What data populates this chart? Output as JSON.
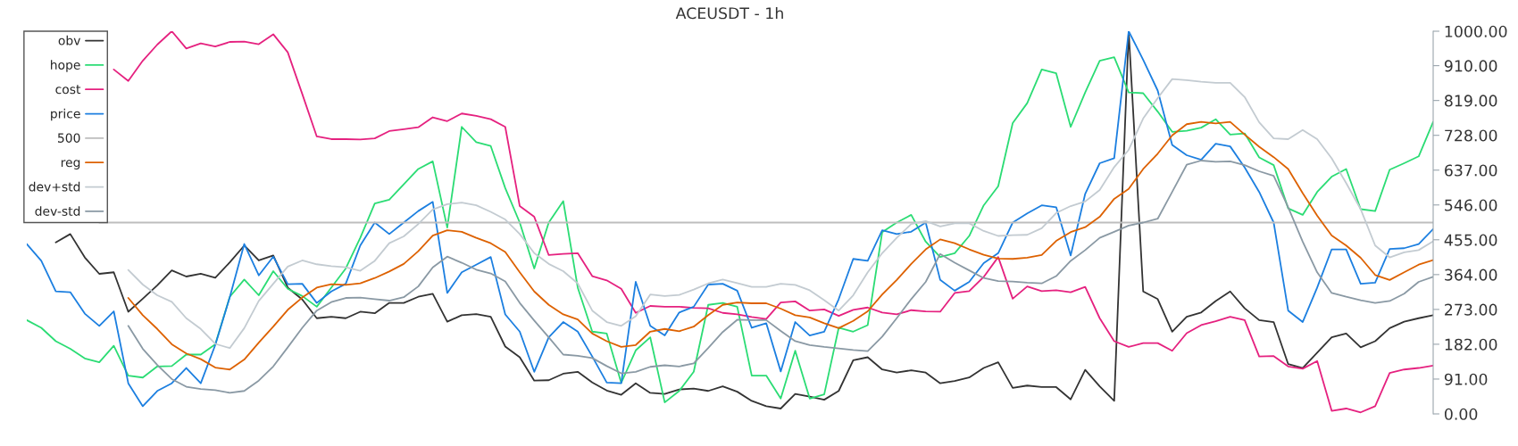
{
  "chart_data": {
    "type": "line",
    "title": "ACEUSDT - 1h",
    "categories": [
      null,
      null,
      null,
      null,
      null,
      null,
      null,
      null,
      null,
      null,
      null,
      null,
      null,
      null,
      null,
      null,
      null,
      null,
      null,
      null,
      null,
      null,
      null,
      null,
      null,
      null,
      null,
      null,
      null,
      null,
      null,
      null,
      null,
      null,
      null,
      null,
      null,
      null,
      null,
      null,
      null,
      null,
      null,
      null,
      null,
      null,
      null,
      null,
      null,
      null,
      null,
      null,
      null,
      null,
      null,
      null,
      null,
      null,
      null,
      null,
      null,
      null,
      null,
      null,
      null,
      null,
      null,
      null,
      null,
      null,
      null,
      null,
      null,
      null,
      null,
      null,
      null,
      null,
      null,
      null,
      null,
      null,
      null,
      null,
      null,
      null,
      null,
      null,
      null,
      null,
      null,
      null,
      null,
      null,
      null,
      null,
      null,
      null
    ],
    "series": [
      {
        "name": "obv",
        "color": "#333333",
        "values": [
          null,
          null,
          448,
          470,
          409,
          366,
          370,
          267,
          301,
          336,
          375,
          359,
          366,
          356,
          396,
          440,
          401,
          414,
          330,
          299,
          250,
          254,
          250,
          267,
          263,
          290,
          290,
          306,
          314,
          241,
          258,
          261,
          254,
          176,
          148,
          87,
          88,
          105,
          110,
          82,
          61,
          50,
          80,
          55,
          52,
          64,
          66,
          60,
          72,
          58,
          34,
          20,
          14,
          52,
          45,
          37,
          60,
          140,
          148,
          116,
          108,
          114,
          108,
          80,
          86,
          95,
          120,
          135,
          68,
          74,
          70,
          70,
          38,
          115,
          72,
          34,
          1000,
          320,
          300,
          215,
          254,
          265,
          295,
          320,
          276,
          245,
          240,
          130,
          120,
          160,
          200,
          210,
          174,
          190,
          224,
          241,
          250,
          258
        ]
      },
      {
        "name": "hope",
        "color": "#2bdc74",
        "values": [
          245,
          225,
          190,
          170,
          145,
          135,
          178,
          100,
          95,
          124,
          125,
          155,
          155,
          182,
          306,
          351,
          310,
          373,
          327,
          308,
          280,
          330,
          380,
          460,
          550,
          560,
          600,
          640,
          660,
          487,
          750,
          710,
          700,
          590,
          500,
          380,
          500,
          556,
          330,
          215,
          210,
          81,
          166,
          200,
          30,
          60,
          110,
          285,
          290,
          280,
          100,
          100,
          40,
          165,
          40,
          51,
          225,
          215,
          232,
          475,
          500,
          520,
          450,
          410,
          420,
          465,
          545,
          595,
          760,
          812,
          900,
          890,
          750,
          840,
          923,
          932,
          840,
          838,
          790,
          737,
          740,
          748,
          770,
          730,
          733,
          670,
          650,
          537,
          520,
          580,
          620,
          640,
          535,
          530,
          638,
          655,
          673,
          763
        ]
      },
      {
        "name": "cost",
        "color": "#e5217f",
        "values": [
          null,
          null,
          null,
          null,
          null,
          null,
          900,
          870,
          923,
          965,
          1000,
          955,
          968,
          960,
          972,
          973,
          966,
          992,
          945,
          836,
          725,
          718,
          718,
          717,
          720,
          739,
          744,
          749,
          775,
          765,
          785,
          779,
          770,
          750,
          543,
          515,
          415,
          418,
          420,
          360,
          349,
          327,
          264,
          282,
          280,
          280,
          277,
          276,
          264,
          260,
          253,
          248,
          291,
          294,
          270,
          273,
          256,
          272,
          278,
          265,
          260,
          271,
          268,
          267,
          316,
          321,
          358,
          410,
          301,
          333,
          321,
          323,
          318,
          332,
          250,
          190,
          175,
          185,
          185,
          165,
          211,
          232,
          242,
          254,
          245,
          150,
          151,
          124,
          118,
          138,
          8,
          14,
          4,
          20,
          107,
          116,
          120,
          126
        ]
      },
      {
        "name": "price",
        "color": "#1c7fe0",
        "values": [
          444,
          400,
          320,
          318,
          262,
          230,
          268,
          80,
          20,
          60,
          80,
          120,
          80,
          180,
          305,
          444,
          362,
          411,
          339,
          340,
          290,
          320,
          340,
          440,
          500,
          470,
          500,
          530,
          554,
          316,
          370,
          390,
          410,
          260,
          215,
          110,
          200,
          240,
          215,
          150,
          82,
          80,
          345,
          230,
          205,
          265,
          280,
          338,
          340,
          322,
          225,
          237,
          111,
          240,
          205,
          215,
          300,
          405,
          400,
          480,
          470,
          476,
          500,
          350,
          322,
          345,
          394,
          420,
          500,
          524,
          545,
          540,
          414,
          575,
          655,
          668,
          1000,
          925,
          845,
          703,
          676,
          664,
          706,
          699,
          644,
          580,
          500,
          270,
          240,
          330,
          430,
          430,
          340,
          343,
          431,
          433,
          444,
          483
        ]
      },
      {
        "name": "500",
        "color": "#bdbdbd",
        "values": [
          null,
          null,
          null,
          null,
          null,
          500,
          500,
          500,
          500,
          500,
          500,
          500,
          500,
          500,
          500,
          500,
          500,
          500,
          500,
          500,
          500,
          500,
          500,
          500,
          500,
          500,
          500,
          500,
          500,
          500,
          500,
          500,
          500,
          500,
          500,
          500,
          500,
          500,
          500,
          500,
          500,
          500,
          500,
          500,
          500,
          500,
          500,
          500,
          500,
          500,
          500,
          500,
          500,
          500,
          500,
          500,
          500,
          500,
          500,
          500,
          500,
          500,
          500,
          500,
          500,
          500,
          500,
          500,
          500,
          500,
          500,
          500,
          500,
          500,
          500,
          500,
          500,
          500,
          500,
          500,
          500,
          500,
          500,
          500,
          500,
          500,
          500,
          500,
          500,
          500,
          500,
          500,
          500,
          500,
          500,
          500,
          500,
          500
        ]
      },
      {
        "name": "reg",
        "color": "#dd6100",
        "values": [
          null,
          null,
          null,
          null,
          null,
          null,
          null,
          303,
          258,
          222,
          182,
          158,
          143,
          121,
          116,
          142,
          186,
          228,
          272,
          304,
          330,
          339,
          337,
          341,
          355,
          372,
          392,
          425,
          466,
          480,
          476,
          460,
          446,
          423,
          370,
          320,
          285,
          260,
          247,
          210,
          190,
          175,
          180,
          215,
          222,
          216,
          228,
          258,
          285,
          291,
          289,
          289,
          275,
          258,
          252,
          237,
          224,
          243,
          268,
          312,
          350,
          392,
          430,
          456,
          446,
          430,
          416,
          406,
          405,
          408,
          415,
          452,
          475,
          488,
          515,
          562,
          588,
          640,
          680,
          728,
          757,
          763,
          759,
          763,
          730,
          698,
          671,
          640,
          577,
          518,
          466,
          440,
          408,
          363,
          350,
          370,
          390,
          402
        ]
      },
      {
        "name": "dev+std",
        "color": "#c3cbd1",
        "values": [
          null,
          null,
          null,
          null,
          null,
          null,
          null,
          376,
          338,
          310,
          293,
          250,
          222,
          183,
          172,
          224,
          295,
          340,
          385,
          401,
          391,
          386,
          383,
          374,
          400,
          446,
          464,
          496,
          534,
          548,
          552,
          545,
          528,
          508,
          470,
          420,
          392,
          373,
          341,
          270,
          240,
          230,
          255,
          312,
          308,
          311,
          325,
          341,
          351,
          342,
          332,
          332,
          340,
          337,
          323,
          297,
          270,
          310,
          370,
          420,
          460,
          496,
          504,
          490,
          498,
          498,
          478,
          465,
          467,
          468,
          485,
          525,
          543,
          555,
          585,
          645,
          690,
          772,
          825,
          875,
          872,
          868,
          865,
          865,
          828,
          762,
          720,
          718,
          742,
          718,
          668,
          603,
          535,
          440,
          409,
          422,
          428,
          451
        ]
      },
      {
        "name": "dev-std",
        "color": "#8a99a4",
        "values": [
          null,
          null,
          null,
          null,
          null,
          null,
          null,
          230,
          170,
          128,
          91,
          71,
          65,
          62,
          55,
          60,
          87,
          124,
          174,
          225,
          270,
          292,
          303,
          304,
          300,
          296,
          305,
          333,
          383,
          411,
          395,
          377,
          367,
          346,
          290,
          244,
          200,
          155,
          152,
          146,
          125,
          106,
          110,
          123,
          127,
          124,
          132,
          172,
          214,
          246,
          245,
          245,
          217,
          190,
          180,
          175,
          171,
          167,
          164,
          202,
          250,
          300,
          345,
          418,
          395,
          375,
          355,
          347,
          346,
          343,
          341,
          360,
          400,
          428,
          460,
          476,
          492,
          500,
          510,
          580,
          651,
          662,
          659,
          660,
          650,
          634,
          622,
          540,
          450,
          370,
          316,
          306,
          297,
          290,
          295,
          314,
          345,
          358
        ]
      }
    ],
    "ylim": [
      0,
      1000
    ],
    "yticks": [
      {
        "value": 0,
        "label": "0.00"
      },
      {
        "value": 91,
        "label": "91.00"
      },
      {
        "value": 182,
        "label": "182.00"
      },
      {
        "value": 273,
        "label": "273.00"
      },
      {
        "value": 364,
        "label": "364.00"
      },
      {
        "value": 455,
        "label": "455.00"
      },
      {
        "value": 546,
        "label": "546.00"
      },
      {
        "value": 637,
        "label": "637.00"
      },
      {
        "value": 728,
        "label": "728.00"
      },
      {
        "value": 819,
        "label": "819.00"
      },
      {
        "value": 910,
        "label": "910.00"
      },
      {
        "value": 1000,
        "label": "1000.00"
      }
    ],
    "tick_labels": "y",
    "legend": "top left"
  }
}
